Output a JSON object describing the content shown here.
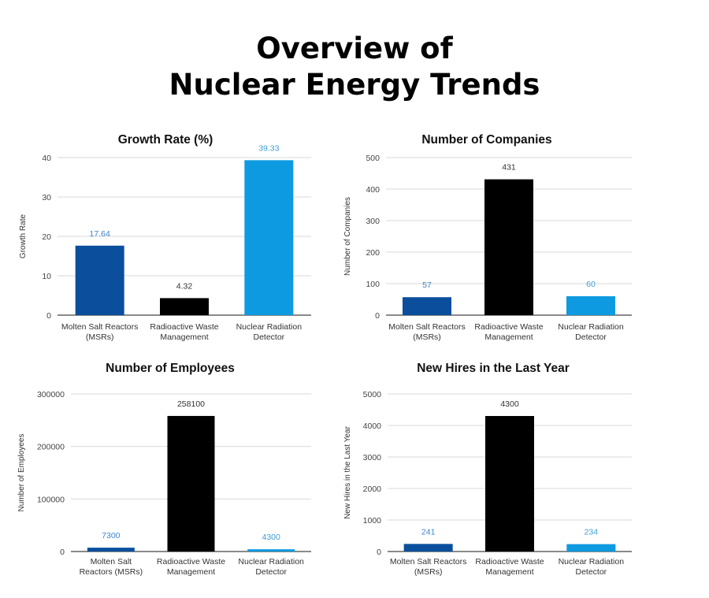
{
  "header": {
    "title_line1": "Overview of",
    "title_line2": "Nuclear Energy Trends"
  },
  "colors": {
    "msr": "#0b4f9c",
    "waste": "#000000",
    "detector": "#0e9ae0",
    "grid": "#d9d9d9",
    "axis": "#444444"
  },
  "chart_data": [
    {
      "type": "bar",
      "title": "Growth Rate (%)",
      "ylabel": "Growth Rate",
      "categories": [
        [
          "Molten Salt Reactors",
          "(MSRs)"
        ],
        [
          "Radioactive Waste",
          "Management"
        ],
        [
          "Nuclear Radiation",
          "Detector"
        ]
      ],
      "values": [
        17.64,
        4.32,
        39.33
      ],
      "value_labels": [
        "17.64",
        "4.32",
        "39.33"
      ],
      "label_colors": [
        "#3d86c9",
        "#333333",
        "#3d9fd6"
      ],
      "ylim": [
        0,
        40
      ],
      "yticks": [
        "0",
        "10",
        "20",
        "30",
        "40"
      ]
    },
    {
      "type": "bar",
      "title": "Number of Companies",
      "ylabel": "Number of Companies",
      "categories": [
        [
          "Molten Salt Reactors",
          "(MSRs)"
        ],
        [
          "Radioactive Waste",
          "Management"
        ],
        [
          "Nuclear Radiation",
          "Detector"
        ]
      ],
      "values": [
        57,
        431,
        60
      ],
      "value_labels": [
        "57",
        "431",
        "60"
      ],
      "label_colors": [
        "#3d86c9",
        "#333333",
        "#3d9fd6"
      ],
      "ylim": [
        0,
        500
      ],
      "yticks": [
        "0",
        "100",
        "200",
        "300",
        "400",
        "500"
      ]
    },
    {
      "type": "bar",
      "title": "Number of Employees",
      "ylabel": "Number of Employees",
      "categories": [
        [
          "Molten Salt",
          "Reactors (MSRs)"
        ],
        [
          "Radioactive Waste",
          "Management"
        ],
        [
          "Nuclear Radiation",
          "Detector"
        ]
      ],
      "values": [
        7300,
        258100,
        4300
      ],
      "value_labels": [
        "7300",
        "258100",
        "4300"
      ],
      "label_colors": [
        "#3d86c9",
        "#333333",
        "#3d9fd6"
      ],
      "ylim": [
        0,
        300000
      ],
      "yticks": [
        "0",
        "100000",
        "200000",
        "300000"
      ]
    },
    {
      "type": "bar",
      "title": "New Hires in the Last Year",
      "ylabel": "New Hires in the Last Year",
      "categories": [
        [
          "Molten Salt Reactors",
          "(MSRs)"
        ],
        [
          "Radioactive Waste",
          "Management"
        ],
        [
          "Nuclear Radiation",
          "Detector"
        ]
      ],
      "values": [
        241,
        4300,
        234
      ],
      "value_labels": [
        "241",
        "4300",
        "234"
      ],
      "label_colors": [
        "#3d86c9",
        "#333333",
        "#3d9fd6"
      ],
      "ylim": [
        0,
        5000
      ],
      "yticks": [
        "0",
        "1000",
        "2000",
        "3000",
        "4000",
        "5000"
      ]
    }
  ]
}
